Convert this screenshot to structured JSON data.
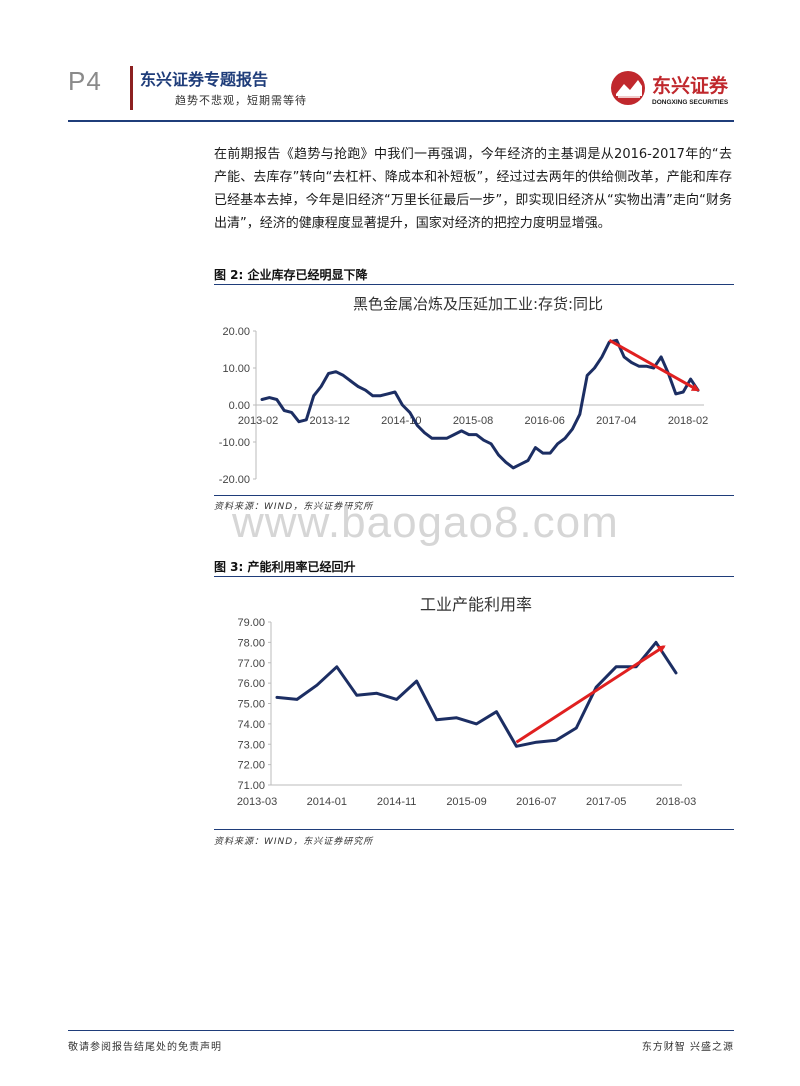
{
  "header": {
    "page_number": "P4",
    "series": "东兴证券专题报告",
    "subtitle": "趋势不悲观，短期需等待",
    "logo_text": "东兴证券",
    "logo_subtext": "DONGXING SECURITIES"
  },
  "body": {
    "intro": "在前期报告《趋势与抢跑》中我们一再强调，今年经济的主基调是从2016-2017年的“去产能、去库存”转向“去杠杆、降成本和补短板”，经过过去两年的供给侧改革，产能和库存已经基本去掉，今年是旧经济“万里长征最后一步”，即实现旧经济从“实物出清”走向“财务出清”，经济的健康程度显著提升，国家对经济的把控力度明显增强。"
  },
  "figures": [
    {
      "title": "图 2: 企业库存已经明显下降",
      "source": "资料来源：WIND，东兴证券研究所"
    },
    {
      "title": "图 3: 产能利用率已经回升",
      "source": "资料来源：WIND，东兴证券研究所"
    }
  ],
  "watermark": "www.baogao8.com",
  "footer": {
    "left": "敬请参阅报告结尾处的免责声明",
    "right": "东方财智 兴盛之源"
  },
  "colors": {
    "series": "#1c2e63",
    "arrow": "#e02020",
    "brand_red": "#c0282d",
    "brand_blue": "#1f3d7a"
  },
  "chart_data": [
    {
      "type": "line",
      "title": "黑色金属冶炼及压延加工业:存货:同比",
      "xlabel": "",
      "ylabel": "",
      "ylim": [
        -20,
        20
      ],
      "yticks": [
        "20.00",
        "10.00",
        "0.00",
        "-10.00",
        "-20.00"
      ],
      "x_tick_labels": [
        "2013-02",
        "2013-12",
        "2014-10",
        "2015-08",
        "2016-06",
        "2017-04",
        "2018-02"
      ],
      "grid": false,
      "legend": "none",
      "series": [
        {
          "values": [
            1.5,
            2.0,
            1.5,
            -1.5,
            -2.0,
            -4.5,
            -4.0,
            2.5,
            5.0,
            8.5,
            9.0,
            8.0,
            6.5,
            5.0,
            4.0,
            2.5,
            2.5,
            3.0,
            3.5,
            0.0,
            -2.0,
            -5.5,
            -7.5,
            -9.0,
            -9.0,
            -9.0,
            -8.0,
            -7.0,
            -8.0,
            -8.0,
            -9.5,
            -10.5,
            -13.5,
            -15.5,
            -17.0,
            -16.0,
            -15.0,
            -11.5,
            -13.0,
            -13.0,
            -10.5,
            -9.0,
            -6.5,
            -2.5,
            8.0,
            10.0,
            13.0,
            17.0,
            17.5,
            13.0,
            11.5,
            10.5,
            10.5,
            10.0,
            13.0,
            8.5,
            3.0,
            3.5,
            7.0,
            4.0
          ]
        }
      ],
      "annotations": [
        {
          "type": "arrow",
          "from": [
            47,
            17.5
          ],
          "to": [
            59,
            4.0
          ]
        }
      ]
    },
    {
      "type": "line",
      "title": "工业产能利用率",
      "xlabel": "",
      "ylabel": "",
      "ylim": [
        71,
        79
      ],
      "yticks": [
        "79.00",
        "78.00",
        "77.00",
        "76.00",
        "75.00",
        "74.00",
        "73.00",
        "72.00",
        "71.00"
      ],
      "x_tick_labels": [
        "2013-03",
        "2014-01",
        "2014-11",
        "2015-09",
        "2016-07",
        "2017-05",
        "2018-03"
      ],
      "grid": false,
      "legend": "none",
      "series": [
        {
          "values": [
            75.3,
            75.2,
            75.9,
            76.8,
            75.4,
            75.5,
            75.2,
            76.1,
            74.2,
            74.3,
            74.0,
            74.6,
            72.9,
            73.1,
            73.2,
            73.8,
            75.8,
            76.8,
            76.8,
            78.0,
            76.5
          ]
        }
      ],
      "annotations": [
        {
          "type": "arrow",
          "from": [
            12,
            73.1
          ],
          "to": [
            19.4,
            77.8
          ]
        }
      ]
    }
  ]
}
